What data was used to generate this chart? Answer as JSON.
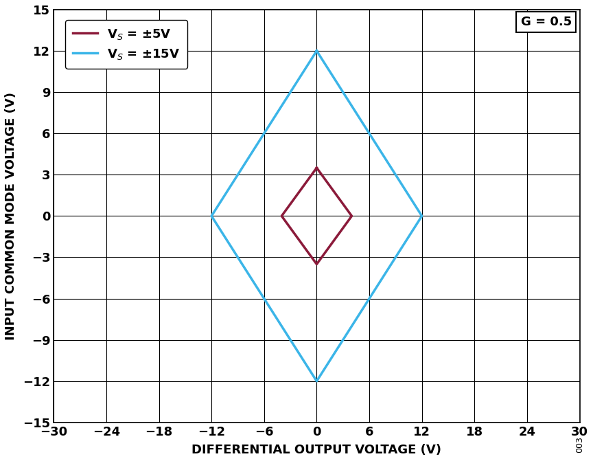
{
  "title": "",
  "xlabel": "DIFFERENTIAL OUTPUT VOLTAGE (V)",
  "ylabel": "INPUT COMMON MODE VOLTAGE (V)",
  "xlim": [
    -30,
    30
  ],
  "ylim": [
    -15,
    15
  ],
  "xticks": [
    -30,
    -24,
    -18,
    -12,
    -6,
    0,
    6,
    12,
    18,
    24,
    30
  ],
  "yticks": [
    -15,
    -12,
    -9,
    -6,
    -3,
    0,
    3,
    6,
    9,
    12,
    15
  ],
  "annotation_g": "G = 0.5",
  "annotation_code": "003",
  "blue_diamond": {
    "x": [
      0,
      -12,
      0,
      12,
      0
    ],
    "y": [
      12,
      0,
      -12,
      0,
      12
    ],
    "color": "#3bb5e8",
    "linewidth": 2.5,
    "label": "V$_S$ = ±15V"
  },
  "red_diamond": {
    "x": [
      0,
      -4,
      0,
      4,
      0
    ],
    "y": [
      3.5,
      0,
      -3.5,
      0,
      3.5
    ],
    "color": "#8b1a3a",
    "linewidth": 2.5,
    "label": "V$_S$ = ±5V"
  },
  "background_color": "#ffffff",
  "grid_color": "#000000",
  "tick_fontsize": 13,
  "label_fontsize": 13,
  "legend_fontsize": 13
}
